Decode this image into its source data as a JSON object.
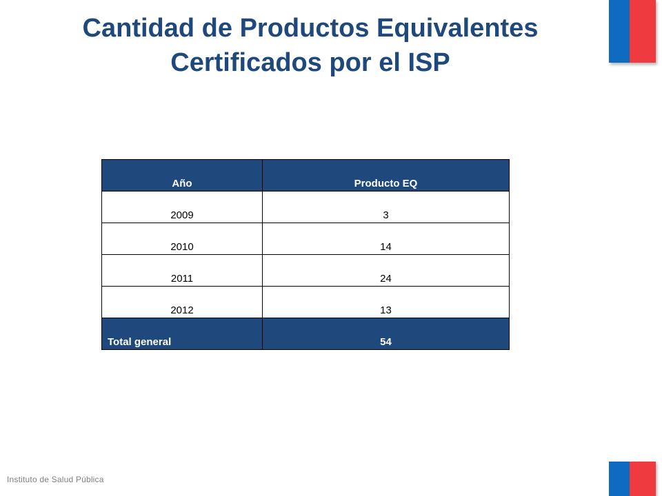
{
  "slide": {
    "title_line1": "Cantidad de Productos Equivalentes",
    "title_line2": "Certificados por el ISP",
    "footer": "Instituto de Salud Pública"
  },
  "colors": {
    "title": "#1f497d",
    "table_header_bg": "#1f497d",
    "flag_blue": "#0f6bbf",
    "flag_red": "#ef3b3f"
  },
  "table": {
    "headers": [
      "Año",
      "Producto EQ"
    ],
    "rows": [
      {
        "year": "2009",
        "count": "3"
      },
      {
        "year": "2010",
        "count": "14"
      },
      {
        "year": "2011",
        "count": "24"
      },
      {
        "year": "2012",
        "count": "13"
      }
    ],
    "total": {
      "label": "Total general",
      "value": "54"
    }
  }
}
